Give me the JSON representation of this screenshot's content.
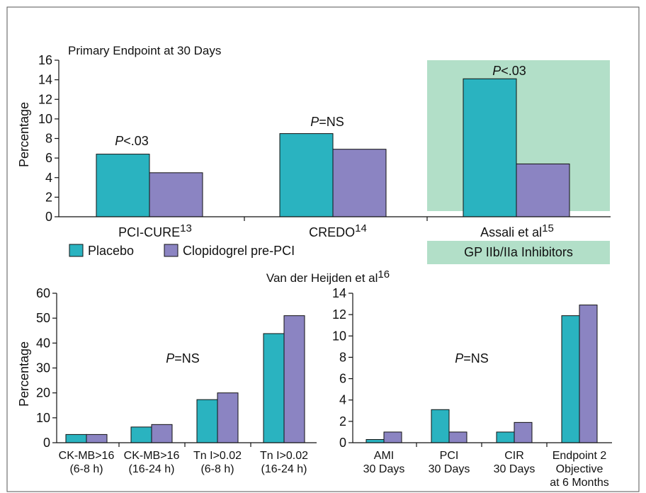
{
  "colors": {
    "placebo": "#2ab3c0",
    "clopidogrel": "#8b84c2",
    "gp_highlight": "#b2dfc8",
    "axis": "#111111",
    "frame": "#555555"
  },
  "top": {
    "title": "Primary Endpoint at 30 Days",
    "ylabel": "Percentage",
    "groups": [
      {
        "name": "PCI-CURE",
        "sup": "13",
        "pval_prefix": "P",
        "pval_suffix": "<.03"
      },
      {
        "name": "CREDO",
        "sup": "14",
        "pval_prefix": "P",
        "pval_suffix": "=NS"
      },
      {
        "name": "Assali et al",
        "sup": "15",
        "pval_prefix": "P",
        "pval_suffix": "<.03"
      }
    ],
    "highlight_label": "GP IIb/IIa Inhibitors"
  },
  "legend": {
    "placebo": "Placebo",
    "clopidogrel": "Clopidogrel pre-PCI"
  },
  "bottom": {
    "title": "Van der Heijden et al",
    "title_sup": "16",
    "ylabel": "Percentage",
    "left": {
      "pval_prefix": "P",
      "pval_suffix": "=NS",
      "categories": [
        [
          "CK-MB>16",
          "(6-8 h)"
        ],
        [
          "CK-MB>16",
          "(16-24 h)"
        ],
        [
          "Tn I>0.02",
          "(6-8 h)"
        ],
        [
          "Tn I>0.02",
          "(16-24 h)"
        ]
      ]
    },
    "right": {
      "pval_prefix": "P",
      "pval_suffix": "=NS",
      "categories": [
        [
          "AMI",
          "30 Days"
        ],
        [
          "PCI",
          "30 Days"
        ],
        [
          "CIR",
          "30 Days"
        ],
        [
          "Endpoint 2",
          "Objective",
          "at 6 Months"
        ]
      ]
    }
  },
  "chart_data": [
    {
      "type": "bar",
      "title": "Primary Endpoint at 30 Days",
      "ylabel": "Percentage",
      "categories": [
        "PCI-CURE13",
        "CREDO14",
        "Assali et al15"
      ],
      "series": [
        {
          "name": "Placebo",
          "values": [
            6.4,
            8.5,
            14.1
          ]
        },
        {
          "name": "Clopidogrel pre-PCI",
          "values": [
            4.5,
            6.9,
            5.4
          ]
        }
      ],
      "ylim": [
        0,
        16
      ],
      "yticks": [
        0,
        2,
        4,
        6,
        8,
        10,
        12,
        14,
        16
      ],
      "annotations": [
        "P<.03",
        "P=NS",
        "P<.03",
        "GP IIb/IIa Inhibitors"
      ],
      "legend": "bottom-left"
    },
    {
      "type": "bar",
      "title": "Van der Heijden et al16",
      "ylabel": "Percentage",
      "categories": [
        "CK-MB>16 (6-8 h)",
        "CK-MB>16 (16-24 h)",
        "Tn I>0.02 (6-8 h)",
        "Tn I>0.02 (16-24 h)"
      ],
      "series": [
        {
          "name": "Placebo",
          "values": [
            3.3,
            6.3,
            17.3,
            43.8
          ]
        },
        {
          "name": "Clopidogrel pre-PCI",
          "values": [
            3.3,
            7.3,
            20.0,
            51.0
          ]
        }
      ],
      "ylim": [
        0,
        60
      ],
      "yticks": [
        0,
        10,
        20,
        30,
        40,
        50,
        60
      ],
      "annotations": [
        "P=NS"
      ]
    },
    {
      "type": "bar",
      "categories": [
        "AMI 30 Days",
        "PCI 30 Days",
        "CIR 30 Days",
        "Endpoint 2 Objective at 6 Months"
      ],
      "series": [
        {
          "name": "Placebo",
          "values": [
            0.3,
            3.1,
            1.0,
            11.9
          ]
        },
        {
          "name": "Clopidogrel pre-PCI",
          "values": [
            1.0,
            1.0,
            1.9,
            12.9
          ]
        }
      ],
      "ylim": [
        0,
        14
      ],
      "yticks": [
        0,
        2,
        4,
        6,
        8,
        10,
        12,
        14
      ],
      "annotations": [
        "P=NS"
      ]
    }
  ]
}
